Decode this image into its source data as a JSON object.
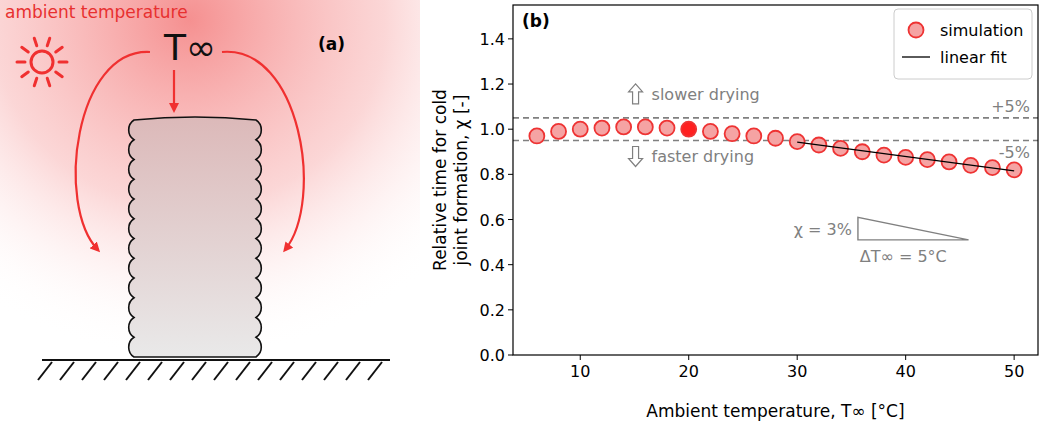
{
  "panel_a": {
    "label": "(a)",
    "title": "ambient temperature",
    "symbol": "T∞"
  },
  "chart_data": {
    "type": "scatter",
    "panel_label": "(b)",
    "xlabel": "Ambient temperature, T∞ [°C]",
    "ylabel": "Relative time for cold joint formation, χ [-]",
    "xlim": [
      3.8,
      52.2
    ],
    "ylim": [
      0,
      1.55
    ],
    "xticks": [
      10,
      20,
      30,
      40,
      50
    ],
    "yticks": [
      {
        "value": 0,
        "label": "0.0"
      },
      {
        "value": 0.2,
        "label": "0.2"
      },
      {
        "value": 0.4,
        "label": "0.4"
      },
      {
        "value": 0.6,
        "label": "0.6"
      },
      {
        "value": 0.8,
        "label": "0.8"
      },
      {
        "value": 1.0,
        "label": "1.0"
      },
      {
        "value": 1.2,
        "label": "1.2"
      },
      {
        "value": 1.4,
        "label": "1.4"
      }
    ],
    "grid": false,
    "legend": "upper right",
    "series": [
      {
        "name": "simulation",
        "type": "scatter",
        "marker": "circle",
        "color": "#ee3333",
        "colors": [
          "#f5a3a3",
          "#f5a3a3",
          "#f5a3a3",
          "#f5a3a3",
          "#f5a3a3",
          "#f5a3a3",
          "#f5a3a3",
          "#ff2020",
          "#f5a3a3",
          "#f5a3a3",
          "#f5a3a3",
          "#f5a3a3",
          "#f5a3a3",
          "#f5a3a3",
          "#f5a3a3",
          "#f5a3a3",
          "#f5a3a3",
          "#f5a3a3",
          "#f5a3a3",
          "#f5a3a3",
          "#f5a3a3",
          "#f5a3a3",
          "#f5a3a3"
        ],
        "x": [
          6,
          8,
          10,
          12,
          14,
          16,
          18,
          20,
          22,
          24,
          26,
          28,
          30,
          32,
          34,
          36,
          38,
          40,
          42,
          44,
          46,
          48,
          50
        ],
        "values": [
          0.97,
          0.99,
          1.0,
          1.005,
          1.01,
          1.01,
          1.005,
          1.0,
          0.99,
          0.98,
          0.97,
          0.96,
          0.945,
          0.93,
          0.915,
          0.9,
          0.885,
          0.875,
          0.865,
          0.855,
          0.84,
          0.83,
          0.82
        ]
      },
      {
        "name": "linear fit",
        "type": "line",
        "line_style": "solid",
        "color": "#000000",
        "x": [
          30,
          50
        ],
        "values": [
          0.943,
          0.815
        ]
      }
    ],
    "reference_lines": [
      {
        "value": 1.05,
        "label": "+5%",
        "text": "slower drying",
        "x": 15.1
      },
      {
        "value": 0.95,
        "label": "-5%",
        "text": "faster drying",
        "x": 15.1
      }
    ],
    "annotations": [
      {
        "type": "slope_triangle",
        "x": [
          35.6,
          45.8
        ],
        "y": [
          0.51,
          0.61
        ],
        "labels": [
          "χ = 3%",
          "ΔT∞ = 5°C"
        ]
      }
    ]
  }
}
